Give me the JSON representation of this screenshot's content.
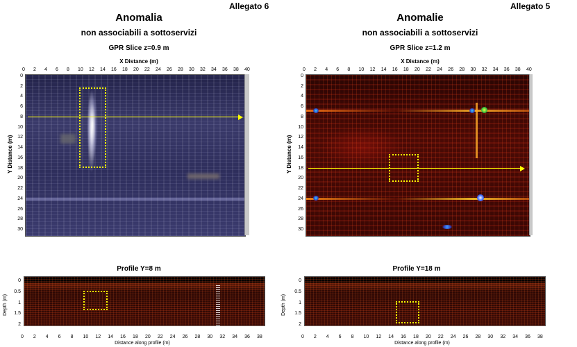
{
  "left": {
    "allegato": "Allegato 6",
    "title": "Anomalia",
    "subtitle": "non associabili a sottoservizi",
    "slice_title": "GPR Slice z=0.9 m",
    "x_axis_title": "X Distance (m)",
    "y_axis_title": "Y Distance (m)",
    "x_ticks": [
      "0",
      "2",
      "4",
      "6",
      "8",
      "10",
      "12",
      "14",
      "16",
      "18",
      "20",
      "22",
      "24",
      "26",
      "28",
      "30",
      "32",
      "34",
      "36",
      "38",
      "40"
    ],
    "y_ticks": [
      "0",
      "2",
      "4",
      "6",
      "8",
      "10",
      "12",
      "14",
      "16",
      "18",
      "20",
      "22",
      "24",
      "26",
      "28",
      "30"
    ],
    "profile_title": "Profile Y=8 m",
    "profile_x_title": "Distance along profile (m)",
    "profile_y_title": "Depth (m)",
    "profile_x_ticks": [
      "0",
      "2",
      "4",
      "6",
      "8",
      "10",
      "12",
      "14",
      "16",
      "18",
      "20",
      "22",
      "24",
      "26",
      "28",
      "30",
      "32",
      "34",
      "36",
      "38"
    ],
    "profile_y_ticks": [
      "0",
      "0.5",
      "1",
      "1.5",
      "2"
    ]
  },
  "right": {
    "allegato": "Allegato 5",
    "title": "Anomalie",
    "subtitle": "non associabili a sottoservizi",
    "slice_title": "GPR Slice z=1.2 m",
    "x_axis_title": "X Distance (m)",
    "y_axis_title": "Y Distance (m)",
    "x_ticks": [
      "0",
      "2",
      "4",
      "6",
      "8",
      "10",
      "12",
      "14",
      "16",
      "18",
      "20",
      "22",
      "24",
      "26",
      "28",
      "30",
      "32",
      "34",
      "36",
      "38",
      "40"
    ],
    "y_ticks": [
      "0",
      "2",
      "4",
      "6",
      "8",
      "10",
      "12",
      "14",
      "16",
      "18",
      "20",
      "22",
      "24",
      "26",
      "28",
      "30"
    ],
    "profile_title": "Profile Y=18 m",
    "profile_x_title": "Distance along profile (m)",
    "profile_y_title": "Depth (m)",
    "profile_x_ticks": [
      "0",
      "2",
      "4",
      "6",
      "8",
      "10",
      "12",
      "14",
      "16",
      "18",
      "20",
      "22",
      "24",
      "26",
      "28",
      "30",
      "32",
      "34",
      "36",
      "38"
    ],
    "profile_y_ticks": [
      "0",
      "0.5",
      "1",
      "1.5",
      "2"
    ]
  },
  "colors": {
    "marker": "#ffff00",
    "left_map": "#2e2e5c",
    "right_map": "#4a0a05"
  }
}
